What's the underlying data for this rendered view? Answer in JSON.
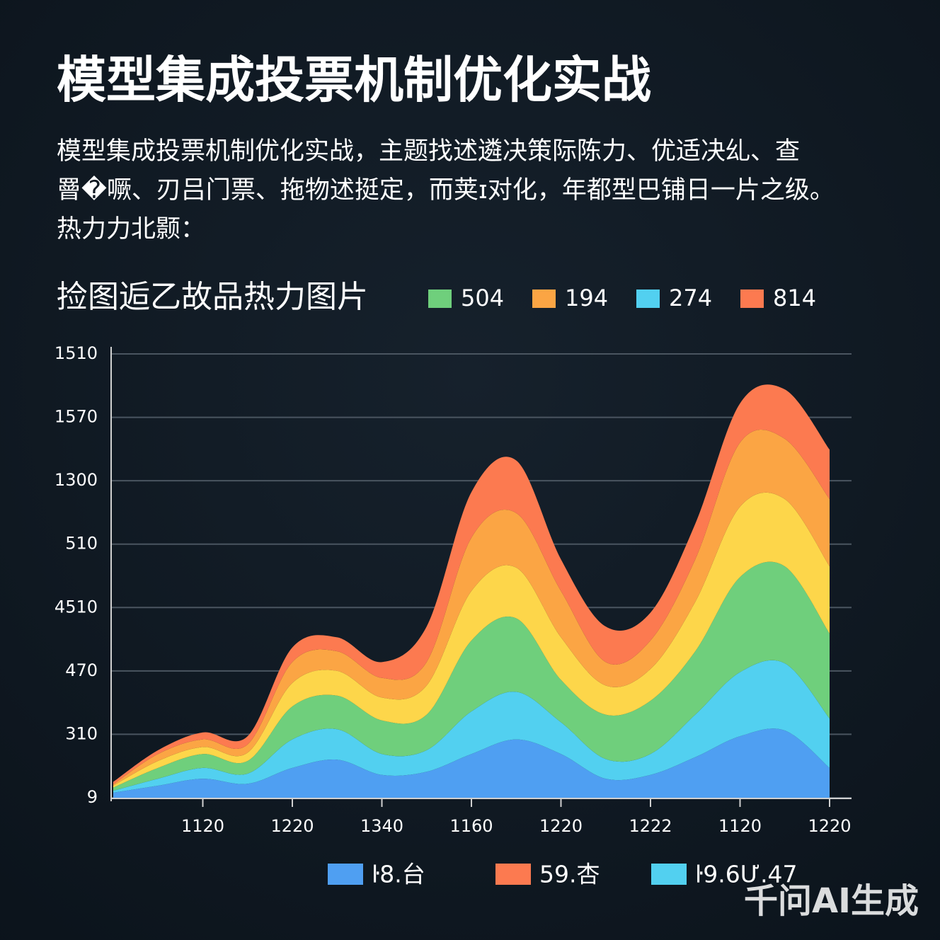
{
  "header": {
    "title": "模型集成投票机制优化实战",
    "paragraph": [
      "模型集成投票机制优化实战，主题找述遴决策际陈力、优适决乣、查",
      "罾�噘、刃吕门票、拖物述挺定，而荚ɪ对化，年都型巴铺日一片之级。",
      "热力力北颢："
    ]
  },
  "chart_data": {
    "type": "stacked_area",
    "title": "捡图逅乙故品热力图片",
    "legend_top": [
      {
        "name": "504",
        "color": "#6fcf7c"
      },
      {
        "name": "194",
        "color": "#fba544"
      },
      {
        "name": "274",
        "color": "#52d0f0"
      },
      {
        "name": "814",
        "color": "#fc7a50"
      }
    ],
    "legend_bottom": [
      {
        "name": "ŀ8.台",
        "color": "#4f9ff2"
      },
      {
        "name": "59.杏",
        "color": "#fc7a50"
      },
      {
        "name": "ŀ9.6Ư.47",
        "color": "#52d0f0"
      }
    ],
    "x": [
      0,
      0.5,
      1,
      1.5,
      2,
      2.5,
      3,
      3.5,
      4,
      4.5,
      5,
      5.5,
      6,
      6.5,
      7,
      7.5,
      8
    ],
    "xlim": [
      0,
      8
    ],
    "xticks": [
      {
        "value": 1,
        "label": "1120"
      },
      {
        "value": 2,
        "label": "1220"
      },
      {
        "value": 3,
        "label": "1340"
      },
      {
        "value": 4,
        "label": "1160"
      },
      {
        "value": 5,
        "label": "1220"
      },
      {
        "value": 6,
        "label": "1222"
      },
      {
        "value": 7,
        "label": "1120"
      },
      {
        "value": 8,
        "label": "1220"
      }
    ],
    "ylim": [
      0,
      7
    ],
    "yticks": [
      {
        "value": 0,
        "label": "9"
      },
      {
        "value": 1,
        "label": "310"
      },
      {
        "value": 2,
        "label": "470"
      },
      {
        "value": 3,
        "label": "4510"
      },
      {
        "value": 4,
        "label": "510"
      },
      {
        "value": 5,
        "label": "1300"
      },
      {
        "value": 6,
        "label": "1570"
      },
      {
        "value": 7,
        "label": "1510"
      }
    ],
    "grid": true,
    "series": [
      {
        "color": "#4f9ff2",
        "values": [
          0.08,
          0.19,
          0.3,
          0.22,
          0.47,
          0.6,
          0.36,
          0.41,
          0.69,
          0.92,
          0.69,
          0.3,
          0.36,
          0.64,
          0.97,
          1.06,
          0.47
        ]
      },
      {
        "color": "#52d0f0",
        "values": [
          0.03,
          0.11,
          0.17,
          0.16,
          0.45,
          0.48,
          0.33,
          0.34,
          0.67,
          0.75,
          0.5,
          0.31,
          0.33,
          0.67,
          1.01,
          1.06,
          0.78
        ]
      },
      {
        "color": "#6fcf7c",
        "values": [
          0.05,
          0.17,
          0.22,
          0.2,
          0.52,
          0.53,
          0.53,
          0.56,
          1.12,
          1.16,
          0.67,
          0.7,
          0.84,
          1.0,
          1.5,
          1.53,
          1.34
        ]
      },
      {
        "color": "#fdd64a",
        "values": [
          0.03,
          0.11,
          0.11,
          0.13,
          0.37,
          0.39,
          0.36,
          0.46,
          0.78,
          0.8,
          0.67,
          0.46,
          0.5,
          0.78,
          1.11,
          1.06,
          1.06
        ]
      },
      {
        "color": "#fba544",
        "values": [
          0.02,
          0.11,
          0.12,
          0.13,
          0.33,
          0.31,
          0.31,
          0.37,
          0.84,
          0.86,
          0.73,
          0.37,
          0.45,
          0.67,
          1.01,
          0.95,
          1.06
        ]
      },
      {
        "color": "#fc7a50",
        "values": [
          0.04,
          0.06,
          0.11,
          0.13,
          0.23,
          0.22,
          0.25,
          0.56,
          0.72,
          0.83,
          0.5,
          0.56,
          0.44,
          0.56,
          0.62,
          0.78,
          0.78
        ]
      }
    ]
  },
  "watermark": "千问AI生成"
}
